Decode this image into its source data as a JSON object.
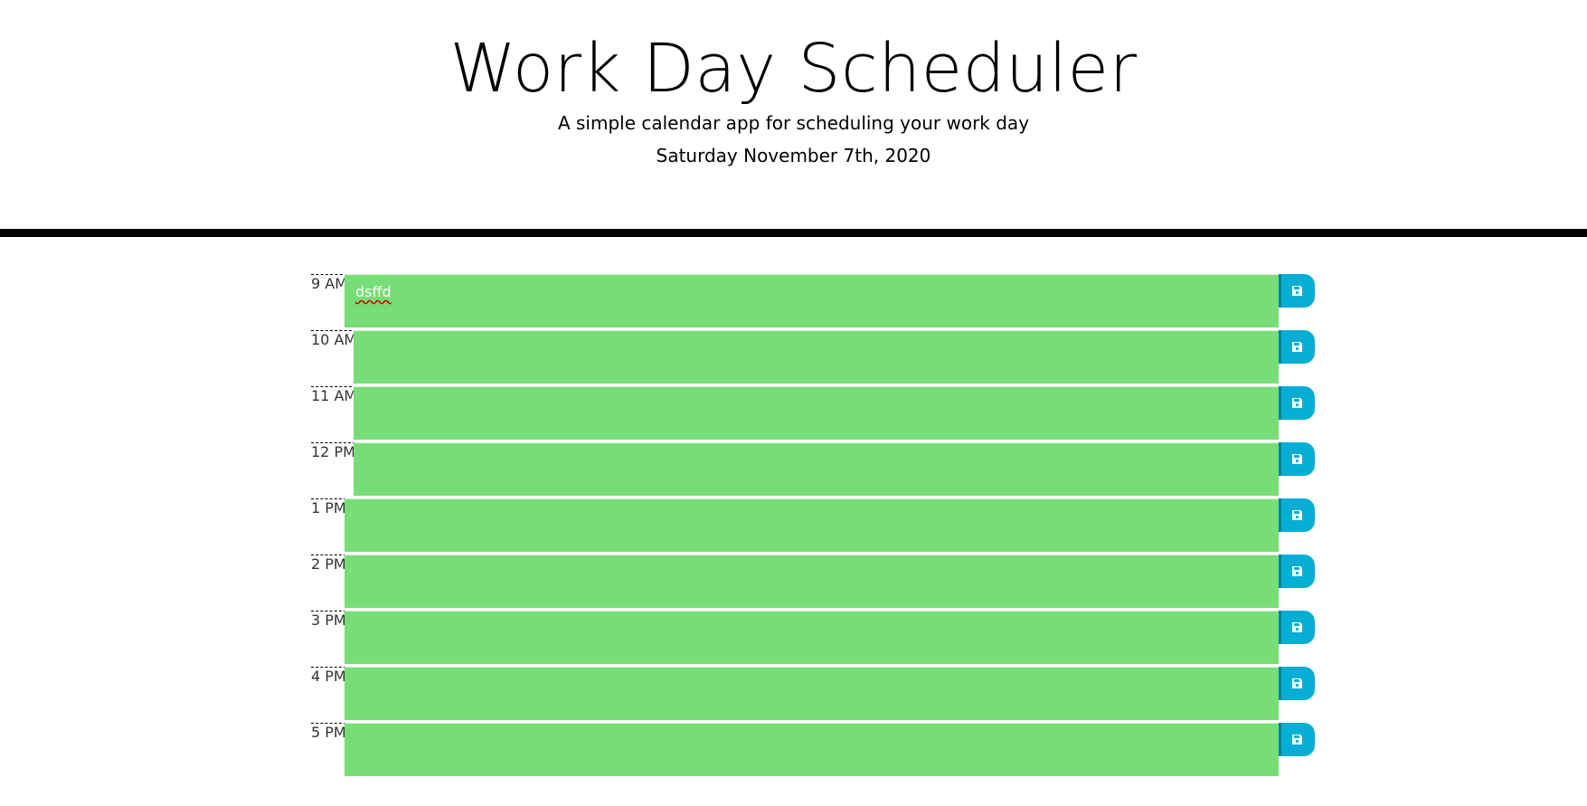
{
  "header": {
    "title": "Work Day Scheduler",
    "subtitle": "A simple calendar app for scheduling your work day",
    "date": "Saturday November 7th, 2020"
  },
  "colors": {
    "present": "#77dd77",
    "save_button": "#06aed5",
    "divider": "#000000"
  },
  "save_icon": "floppy-disk-icon",
  "hours": [
    {
      "label": "9 AM",
      "text": "dsffd"
    },
    {
      "label": "10 AM",
      "text": ""
    },
    {
      "label": "11 AM",
      "text": ""
    },
    {
      "label": "12 PM",
      "text": ""
    },
    {
      "label": "1 PM",
      "text": ""
    },
    {
      "label": "2 PM",
      "text": ""
    },
    {
      "label": "3 PM",
      "text": ""
    },
    {
      "label": "4 PM",
      "text": ""
    },
    {
      "label": "5 PM",
      "text": ""
    }
  ]
}
